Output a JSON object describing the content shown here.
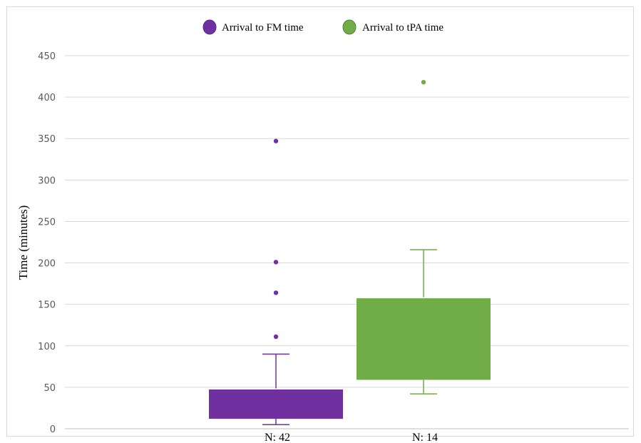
{
  "chart_data": {
    "type": "boxplot",
    "title": "",
    "ylabel": "Time (minutes)",
    "ylim": [
      0,
      450
    ],
    "yticks": [
      0,
      50,
      100,
      150,
      200,
      250,
      300,
      350,
      400,
      450
    ],
    "grid": true,
    "legend_position": "top",
    "series": [
      {
        "name": "Arrival to FM time",
        "category": "N: 42",
        "color": "#7030a0",
        "whisker_low": 5,
        "q1": 12,
        "median": 48,
        "q3": 48,
        "whisker_high": 90,
        "outliers": [
          111,
          164,
          201,
          347
        ]
      },
      {
        "name": "Arrival to tPA time",
        "category": "N: 14",
        "color": "#70ad47",
        "whisker_low": 42,
        "q1": 59,
        "median": 158,
        "q3": 158,
        "whisker_high": 216,
        "outliers": [
          418
        ]
      }
    ]
  }
}
